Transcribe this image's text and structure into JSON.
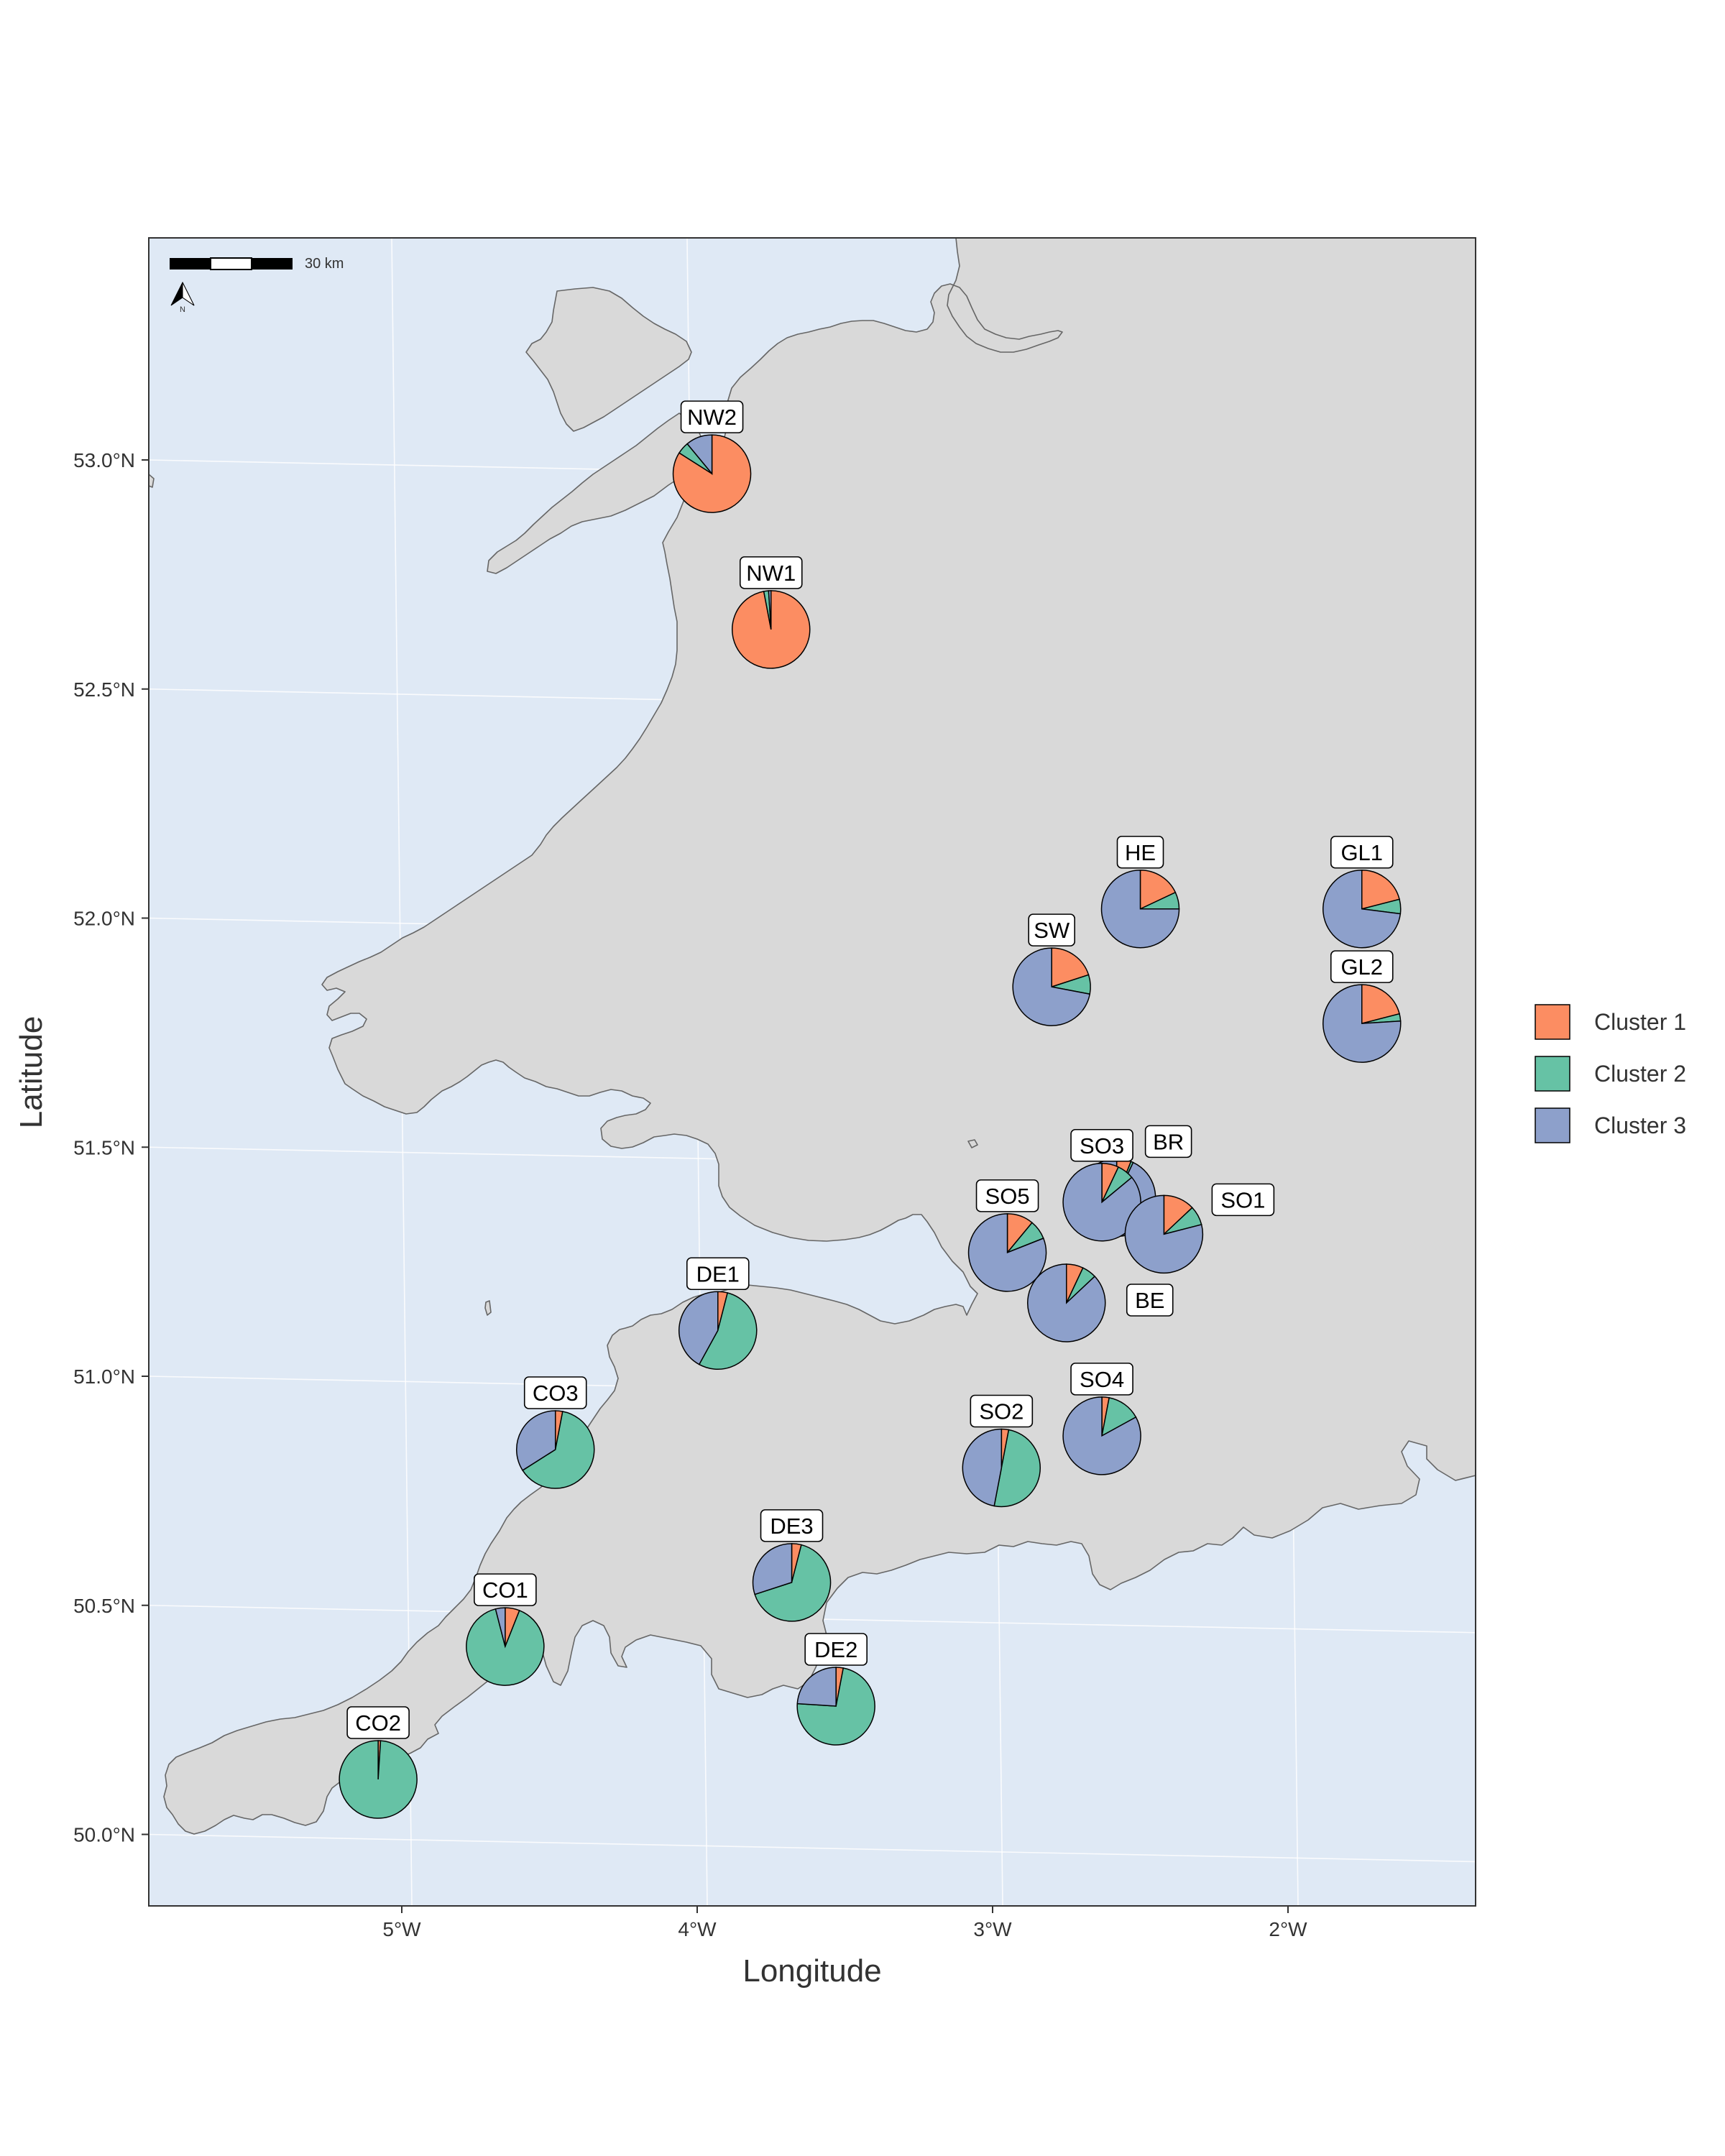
{
  "map": {
    "x_axis_title": "Longitude",
    "y_axis_title": "Latitude",
    "x_ticks": [
      "5°W",
      "4°W",
      "3°W",
      "2°W"
    ],
    "y_ticks": [
      "53.0°N",
      "52.5°N",
      "52.0°N",
      "51.5°N",
      "51.0°N",
      "50.5°N",
      "50.0°N"
    ],
    "scale_bar_label": "30 km",
    "north_arrow_label": "N",
    "colors": {
      "sea": "#dfe9f5",
      "land": "#d9d9d9",
      "coast": "#666666",
      "cluster_1": "#fc8d62",
      "cluster_2": "#66c2a5",
      "cluster_3": "#8da0cb"
    },
    "legend": {
      "position": "right",
      "items": [
        {
          "label": "Cluster 1",
          "color_key": "cluster_1"
        },
        {
          "label": "Cluster 2",
          "color_key": "cluster_2"
        },
        {
          "label": "Cluster 3",
          "color_key": "cluster_3"
        }
      ]
    }
  },
  "chart_data": {
    "type": "pie-map",
    "x_range": [
      -5.75,
      -1.25
    ],
    "y_range": [
      49.85,
      53.5
    ],
    "series_names": [
      "Cluster 1",
      "Cluster 2",
      "Cluster 3"
    ],
    "sites": [
      {
        "id": "NW2",
        "lon": -3.95,
        "lat": 52.97,
        "proportions": [
          0.84,
          0.05,
          0.11
        ]
      },
      {
        "id": "NW1",
        "lon": -3.75,
        "lat": 52.63,
        "proportions": [
          0.97,
          0.02,
          0.01
        ]
      },
      {
        "id": "HE",
        "lon": -2.5,
        "lat": 52.02,
        "proportions": [
          0.18,
          0.07,
          0.75
        ]
      },
      {
        "id": "GL1",
        "lon": -1.75,
        "lat": 52.02,
        "proportions": [
          0.21,
          0.06,
          0.73
        ]
      },
      {
        "id": "SW",
        "lon": -2.8,
        "lat": 51.85,
        "proportions": [
          0.2,
          0.08,
          0.72
        ]
      },
      {
        "id": "GL2",
        "lon": -1.75,
        "lat": 51.77,
        "proportions": [
          0.21,
          0.03,
          0.76
        ]
      },
      {
        "id": "BR",
        "lon": -2.58,
        "lat": 51.39,
        "proportions": [
          0.06,
          0.01,
          0.93
        ]
      },
      {
        "id": "SO3",
        "lon": -2.63,
        "lat": 51.38,
        "proportions": [
          0.07,
          0.07,
          0.86
        ]
      },
      {
        "id": "SO1",
        "lon": -2.42,
        "lat": 51.31,
        "proportions": [
          0.13,
          0.08,
          0.79
        ]
      },
      {
        "id": "SO5",
        "lon": -2.95,
        "lat": 51.27,
        "proportions": [
          0.11,
          0.08,
          0.81
        ]
      },
      {
        "id": "BE",
        "lon": -2.75,
        "lat": 51.16,
        "proportions": [
          0.07,
          0.06,
          0.87
        ]
      },
      {
        "id": "DE1",
        "lon": -3.93,
        "lat": 51.1,
        "proportions": [
          0.04,
          0.54,
          0.42
        ]
      },
      {
        "id": "SO4",
        "lon": -2.63,
        "lat": 50.87,
        "proportions": [
          0.03,
          0.14,
          0.83
        ]
      },
      {
        "id": "CO3",
        "lon": -4.48,
        "lat": 50.84,
        "proportions": [
          0.03,
          0.63,
          0.34
        ]
      },
      {
        "id": "SO2",
        "lon": -2.97,
        "lat": 50.8,
        "proportions": [
          0.03,
          0.5,
          0.47
        ]
      },
      {
        "id": "DE3",
        "lon": -3.68,
        "lat": 50.55,
        "proportions": [
          0.04,
          0.66,
          0.3
        ]
      },
      {
        "id": "CO1",
        "lon": -4.65,
        "lat": 50.41,
        "proportions": [
          0.06,
          0.9,
          0.04
        ]
      },
      {
        "id": "DE2",
        "lon": -3.53,
        "lat": 50.28,
        "proportions": [
          0.03,
          0.73,
          0.24
        ]
      },
      {
        "id": "CO2",
        "lon": -5.08,
        "lat": 50.12,
        "proportions": [
          0.01,
          0.99,
          0.0
        ]
      }
    ]
  }
}
